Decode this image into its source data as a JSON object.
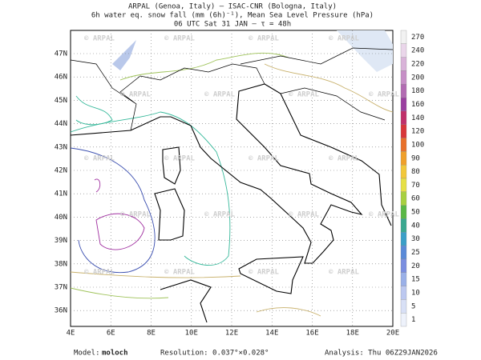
{
  "header": {
    "line1": "ARPAL (Genoa, Italy)  —  ISAC-CNR (Bologna, Italy)",
    "line2": "6h water eq. snow fall (mm (6h)⁻¹), Mean Sea Level Pressure (hPa)",
    "line3": "06 UTC Sat 31 JAN  —  τ = 48h"
  },
  "map": {
    "lat_labels": [
      "47N",
      "46N",
      "45N",
      "44N",
      "43N",
      "42N",
      "41N",
      "40N",
      "39N",
      "38N",
      "37N",
      "36N"
    ],
    "lon_labels": [
      "4E",
      "6E",
      "8E",
      "10E",
      "12E",
      "14E",
      "16E",
      "18E",
      "20E"
    ],
    "watermark": "© ARPAL"
  },
  "colorbar": {
    "labels": [
      270,
      240,
      220,
      200,
      180,
      160,
      140,
      120,
      100,
      90,
      80,
      70,
      60,
      50,
      40,
      30,
      25,
      20,
      15,
      10,
      5,
      1
    ]
  },
  "footer": {
    "model_label": "Model:",
    "model": "moloch",
    "resolution": "Resolution: 0.037°×0.028°",
    "analysis": "Analysis: Thu 06Z29JAN2026"
  }
}
